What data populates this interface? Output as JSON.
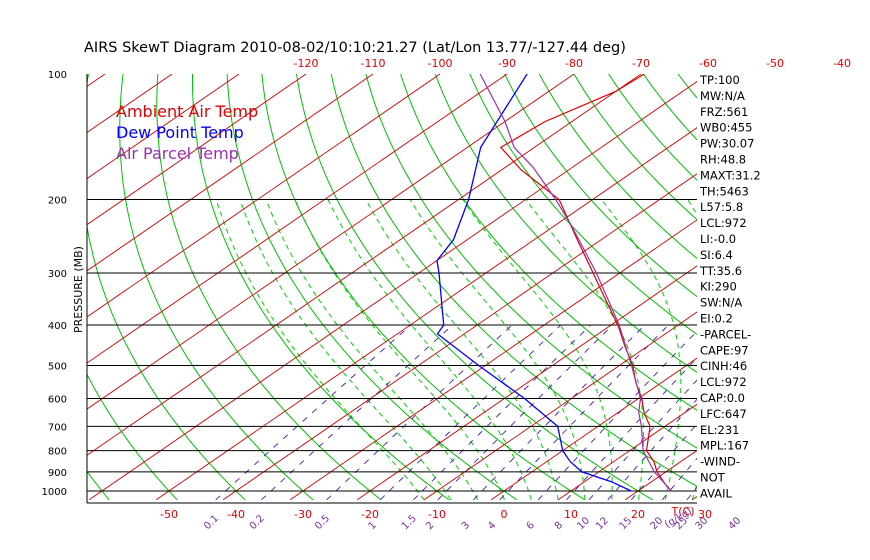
{
  "title": "AIRS SkewT Diagram 2010-08-02/10:10:21.27 (Lat/Lon 13.77/-127.44 deg)",
  "colors": {
    "ambient": "#e00000",
    "dewpoint": "#0000ff",
    "parcel": "#9b30b0",
    "dry_adiabat": "#00c000",
    "moist_adiabat": "#00d000",
    "mixing_ratio": "#3d1fb0",
    "isotherm": "#d00000",
    "tick_red": "#e00000",
    "tick_purple": "#7b2fa0"
  },
  "legend": [
    {
      "label": "Ambient Air Temp",
      "color": "#e00000"
    },
    {
      "label": "Dew Point Temp",
      "color": "#0000ff"
    },
    {
      "label": "Air Parcel Temp",
      "color": "#9b30b0"
    }
  ],
  "ylabel": "PRESSURE (MB)",
  "chart_data": {
    "type": "line",
    "y_scale": "log",
    "ylim": [
      1050,
      100
    ],
    "xlim_bottom": [
      -55,
      45
    ],
    "xlim_top": [
      -130,
      -35
    ],
    "pressure_ticks": [
      "100",
      "200",
      "300",
      "400",
      "500",
      "600",
      "700",
      "800",
      "900",
      "1000"
    ],
    "bottom_temp_ticks": [
      "-50",
      "-40",
      "-30",
      "-20",
      "-10",
      "0",
      "10",
      "20",
      "30"
    ],
    "top_temp_ticks": [
      "-120",
      "-110",
      "-100",
      "-90",
      "-80",
      "-70",
      "-60",
      "-50",
      "-40"
    ],
    "mixing_ratio_labels": [
      "0.1",
      "0.2",
      "0.5",
      "1",
      "1.5",
      "2",
      "3",
      "4",
      "6",
      "8",
      "10",
      "12",
      "15",
      "20",
      "25",
      "30",
      "40"
    ],
    "xunit_label": "T(C)",
    "mixing_unit_label": "(g/kg)",
    "series": [
      {
        "name": "Ambient Air Temp",
        "points": [
          [
            1000,
            25.0
          ],
          [
            970,
            23.0
          ],
          [
            925,
            20.3
          ],
          [
            900,
            18.7
          ],
          [
            850,
            16.0
          ],
          [
            800,
            12.5
          ],
          [
            700,
            7.8
          ],
          [
            650,
            4.0
          ],
          [
            600,
            0.5
          ],
          [
            550,
            -3.8
          ],
          [
            500,
            -8.0
          ],
          [
            450,
            -13.3
          ],
          [
            400,
            -19.0
          ],
          [
            350,
            -26.0
          ],
          [
            300,
            -34.0
          ],
          [
            250,
            -43.5
          ],
          [
            200,
            -55.0
          ],
          [
            170,
            -67.0
          ],
          [
            150,
            -75.0
          ],
          [
            130,
            -74.0
          ],
          [
            110,
            -70.0
          ],
          [
            100,
            -69.5
          ]
        ]
      },
      {
        "name": "Dew Point Temp",
        "points": [
          [
            1000,
            19.0
          ],
          [
            950,
            14.0
          ],
          [
            900,
            7.5
          ],
          [
            850,
            3.5
          ],
          [
            800,
            0.0
          ],
          [
            700,
            -6.0
          ],
          [
            600,
            -17.0
          ],
          [
            500,
            -31.0
          ],
          [
            420,
            -44.0
          ],
          [
            400,
            -45.0
          ],
          [
            300,
            -57.0
          ],
          [
            280,
            -60.0
          ],
          [
            250,
            -62.0
          ],
          [
            200,
            -68.5
          ],
          [
            150,
            -78.0
          ],
          [
            100,
            -87.0
          ]
        ]
      },
      {
        "name": "Air Parcel Temp",
        "points": [
          [
            1000,
            25.0
          ],
          [
            972,
            23.2
          ],
          [
            900,
            18.3
          ],
          [
            800,
            12.0
          ],
          [
            700,
            6.5
          ],
          [
            647,
            3.0
          ],
          [
            600,
            0.3
          ],
          [
            500,
            -8.2
          ],
          [
            400,
            -18.8
          ],
          [
            300,
            -33.5
          ],
          [
            231,
            -47.5
          ],
          [
            200,
            -55.5
          ],
          [
            167,
            -66.0
          ],
          [
            150,
            -73.0
          ],
          [
            130,
            -80.0
          ],
          [
            100,
            -94.0
          ]
        ]
      }
    ]
  },
  "indices": [
    "TP:100",
    "MW:N/A",
    "FRZ:561",
    "WB0:455",
    "PW:30.07",
    "RH:48.8",
    "MAXT:31.2",
    "TH:5463",
    "L57:5.8",
    "LCL:972",
    "LI:-0.0",
    "SI:6.4",
    "TT:35.6",
    "KI:290",
    "SW:N/A",
    "EI:0.2",
    "-PARCEL-",
    "CAPE:97",
    "CINH:46",
    "LCL:972",
    "CAP:0.0",
    "LFC:647",
    "EL:231",
    "MPL:167",
    "-WIND-",
    "NOT",
    "AVAIL"
  ]
}
